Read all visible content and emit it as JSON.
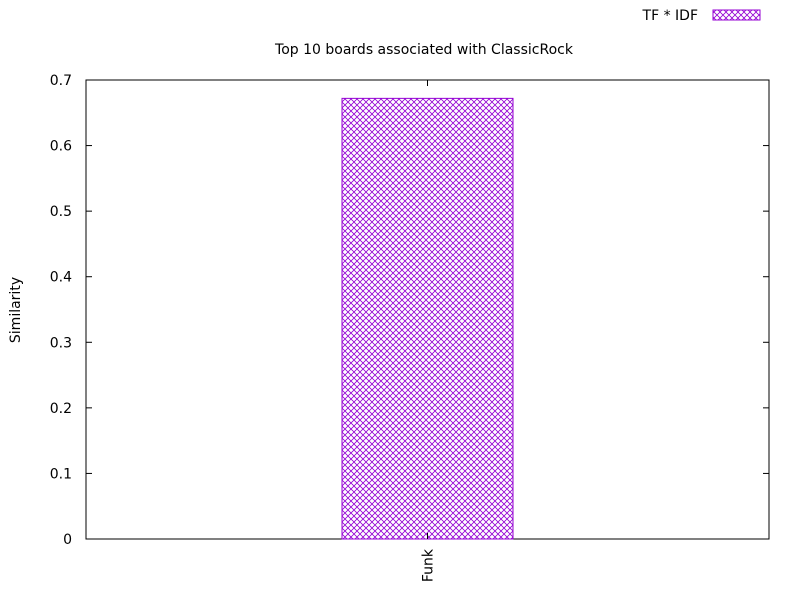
{
  "chart_data": {
    "type": "bar",
    "title": "Top 10 boards associated with ClassicRock",
    "xlabel": "",
    "ylabel": "Similarity",
    "categories": [
      "Funk"
    ],
    "series": [
      {
        "name": "TF * IDF",
        "values": [
          0.672
        ]
      }
    ],
    "ylim": [
      0,
      0.7
    ],
    "yticks": [
      "0",
      "0.1",
      "0.2",
      "0.3",
      "0.4",
      "0.5",
      "0.6",
      "0.7"
    ],
    "grid": false,
    "legend_position": "top-right",
    "bar_pattern": "crosshatch"
  },
  "colors": {
    "series": "#9400d3",
    "axis": "#000000",
    "background": "#ffffff"
  }
}
